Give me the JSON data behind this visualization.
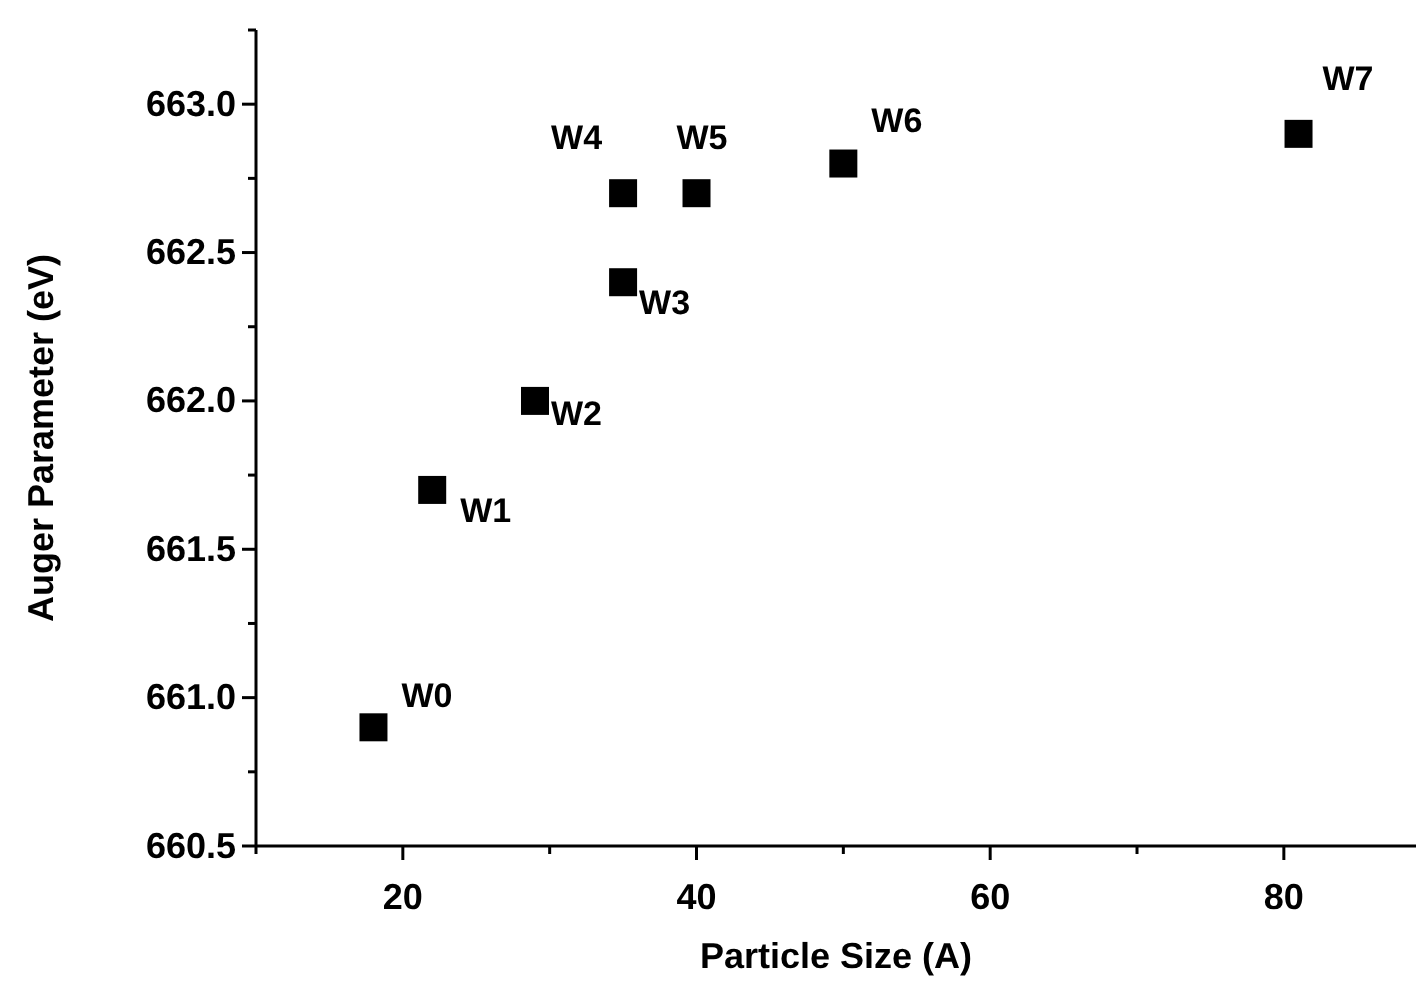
{
  "chart_data": {
    "type": "scatter",
    "xlabel": "Particle Size (A)",
    "ylabel": "Auger Parameter (eV)",
    "x": [
      18,
      22,
      29,
      35,
      35,
      40,
      50,
      81
    ],
    "series": [
      {
        "color": "#000000",
        "values": [
          660.9,
          661.7,
          662.0,
          662.4,
          662.7,
          662.7,
          662.8,
          662.9
        ]
      }
    ],
    "marker": "square",
    "xlim": [
      10,
      89
    ],
    "xticks": [
      20,
      40,
      60,
      80
    ],
    "ylim": [
      660.5,
      663.25
    ],
    "yticks": [
      {
        "value": 660.5,
        "label": "660.5"
      },
      {
        "value": 661.0,
        "label": "661.0"
      },
      {
        "value": 661.5,
        "label": "661.5"
      },
      {
        "value": 662.0,
        "label": "662.0"
      },
      {
        "value": 662.5,
        "label": "662.5"
      },
      {
        "value": 663.0,
        "label": "663.0"
      }
    ],
    "annotations": [
      {
        "text": "W0",
        "x": 18,
        "y": 660.9
      },
      {
        "text": "W1",
        "x": 22,
        "y": 661.7
      },
      {
        "text": "W2",
        "x": 29,
        "y": 662.0
      },
      {
        "text": "W3",
        "x": 35,
        "y": 662.4
      },
      {
        "text": "W4",
        "x": 35,
        "y": 662.7
      },
      {
        "text": "W5",
        "x": 40,
        "y": 662.7
      },
      {
        "text": "W6",
        "x": 50,
        "y": 662.8
      },
      {
        "text": "W7",
        "x": 81,
        "y": 662.9
      }
    ],
    "grid": false
  }
}
